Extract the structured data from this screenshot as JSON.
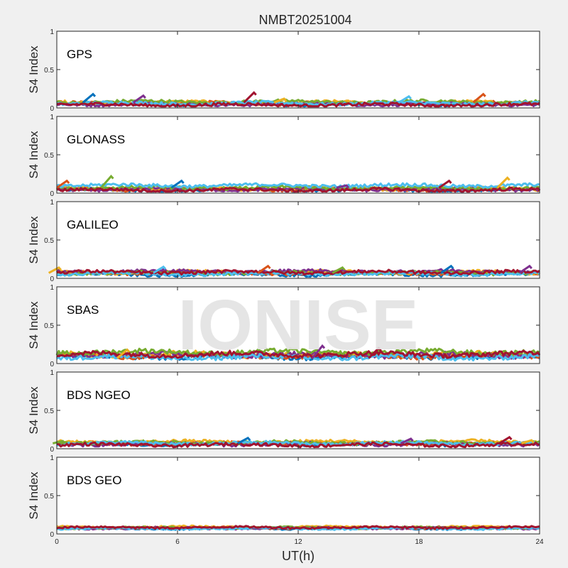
{
  "figure": {
    "title": "NMBT20251004",
    "xlabel": "UT(h)",
    "watermark": "IONISE",
    "x_ticks": [
      "0",
      "6",
      "12",
      "18",
      "24"
    ],
    "y_ticks": [
      "0",
      "0.5",
      "1"
    ],
    "colors": {
      "background": "#f0f0f0",
      "axes_bg": "#ffffff",
      "watermark": "#e3e3e3",
      "series": [
        "#0072bd",
        "#d95319",
        "#edb120",
        "#7e2f8e",
        "#77ac30",
        "#4dbeee",
        "#a2142f"
      ]
    }
  },
  "chart_data": [
    {
      "type": "scatter",
      "panel_label": "GPS",
      "ylabel": "S4 Index",
      "xlim": [
        0,
        24
      ],
      "ylim": [
        0,
        1
      ],
      "grid": false,
      "series_base": [
        0.05,
        0.06,
        0.07,
        0.05,
        0.08,
        0.06,
        0.04
      ],
      "noise": 0.02,
      "spikes": [
        {
          "x": 1.8,
          "y": 0.18
        },
        {
          "x": 4.3,
          "y": 0.16
        },
        {
          "x": 9.8,
          "y": 0.2
        },
        {
          "x": 11.3,
          "y": 0.12
        },
        {
          "x": 17.5,
          "y": 0.15
        },
        {
          "x": 21.2,
          "y": 0.18
        }
      ]
    },
    {
      "type": "scatter",
      "panel_label": "GLONASS",
      "ylabel": "S4 Index",
      "xlim": [
        0,
        24
      ],
      "ylim": [
        0,
        1
      ],
      "grid": false,
      "series_base": [
        0.04,
        0.05,
        0.06,
        0.05,
        0.07,
        0.1,
        0.04
      ],
      "noise": 0.02,
      "spikes": [
        {
          "x": 0.5,
          "y": 0.16
        },
        {
          "x": 2.7,
          "y": 0.22
        },
        {
          "x": 6.2,
          "y": 0.16
        },
        {
          "x": 14.4,
          "y": 0.1
        },
        {
          "x": 19.5,
          "y": 0.16
        },
        {
          "x": 22.4,
          "y": 0.2
        }
      ]
    },
    {
      "type": "scatter",
      "panel_label": "GALILEO",
      "ylabel": "S4 Index",
      "xlim": [
        0,
        24
      ],
      "ylim": [
        0,
        1
      ],
      "grid": false,
      "series_base": [
        0.05,
        0.07,
        0.08,
        0.09,
        0.07,
        0.06,
        0.08
      ],
      "noise": 0.02,
      "spikes": [
        {
          "x": 0.1,
          "y": 0.14
        },
        {
          "x": 5.3,
          "y": 0.15
        },
        {
          "x": 10.5,
          "y": 0.16
        },
        {
          "x": 14.2,
          "y": 0.14
        },
        {
          "x": 19.6,
          "y": 0.16
        },
        {
          "x": 23.5,
          "y": 0.16
        }
      ]
    },
    {
      "type": "scatter",
      "panel_label": "SBAS",
      "ylabel": "S4 Index",
      "xlim": [
        0,
        24
      ],
      "ylim": [
        0,
        1
      ],
      "grid": false,
      "series_base": [
        0.09,
        0.1,
        0.12,
        0.11,
        0.15,
        0.08,
        0.12
      ],
      "noise": 0.03,
      "spikes": [
        {
          "x": 13.2,
          "y": 0.23
        },
        {
          "x": 16.0,
          "y": 0.2
        },
        {
          "x": 3.5,
          "y": 0.18
        }
      ]
    },
    {
      "type": "scatter",
      "panel_label": "BDS NGEO",
      "ylabel": "S4 Index",
      "xlim": [
        0,
        24
      ],
      "ylim": [
        0,
        1
      ],
      "grid": false,
      "series_base": [
        0.06,
        0.07,
        0.09,
        0.06,
        0.08,
        0.07,
        0.05
      ],
      "noise": 0.02,
      "spikes": [
        {
          "x": 0.3,
          "y": 0.1
        },
        {
          "x": 9.5,
          "y": 0.14
        },
        {
          "x": 17.6,
          "y": 0.13
        },
        {
          "x": 22.5,
          "y": 0.15
        },
        {
          "x": 23.6,
          "y": 0.11
        }
      ]
    },
    {
      "type": "scatter",
      "panel_label": "BDS GEO",
      "ylabel": "S4 Index",
      "xlim": [
        0,
        24
      ],
      "ylim": [
        0,
        1
      ],
      "grid": false,
      "series_base": [
        0.07,
        0.08,
        0.09,
        0.075,
        0.08,
        0.07,
        0.085
      ],
      "noise": 0.012,
      "spikes": []
    }
  ]
}
